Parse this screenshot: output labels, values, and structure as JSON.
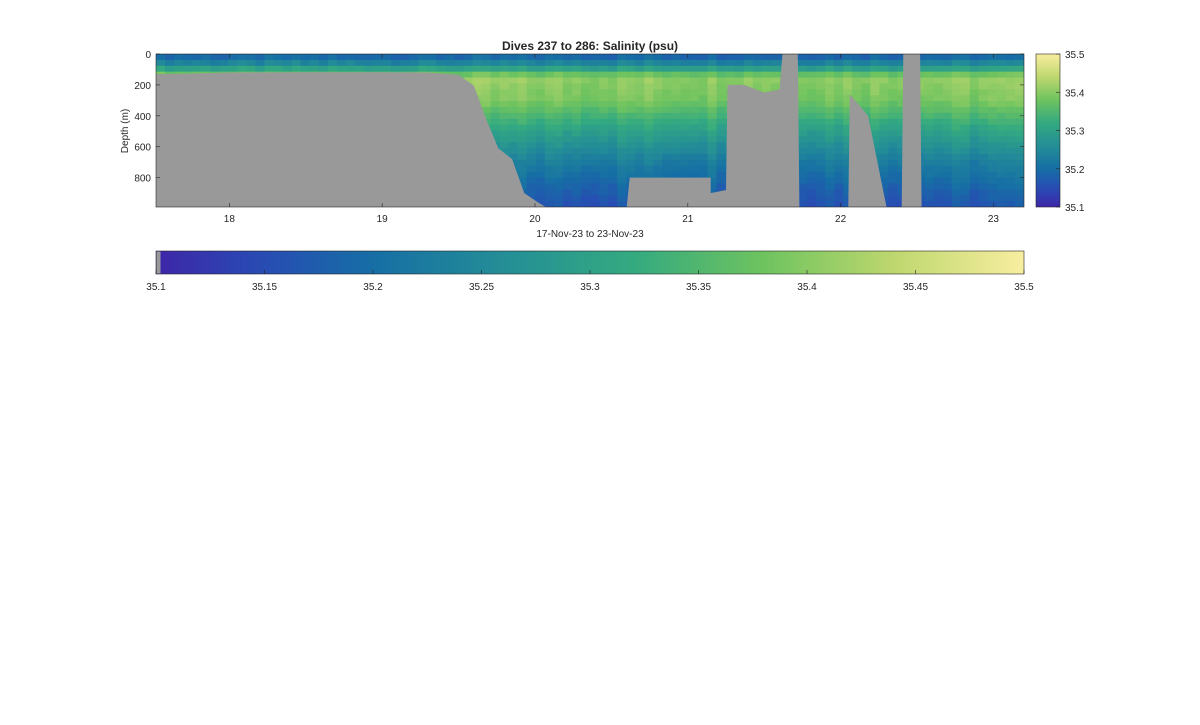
{
  "chart_data": [
    {
      "type": "heatmap",
      "title": "Dives 237 to 286: Salinity (psu)",
      "xlabel": "17-Nov-23 to 23-Nov-23",
      "ylabel": "Depth (m)",
      "x_unit": "day of Nov-2023",
      "xlim": [
        17.52,
        23.2
      ],
      "ylim": [
        0,
        990
      ],
      "y_reversed": true,
      "x_ticks": [
        18,
        19,
        20,
        21,
        22,
        23
      ],
      "y_ticks": [
        0,
        200,
        400,
        600,
        800
      ],
      "grid": false,
      "colormap": "parula",
      "no_data_color": "#999999",
      "color_range": [
        35.1,
        35.5
      ],
      "colorbar_ticks": [
        "35.5",
        "35.4",
        "35.3",
        "35.2",
        "35.1"
      ],
      "bottom_of_data_m": [
        [
          17.52,
          130
        ],
        [
          17.7,
          128
        ],
        [
          18.0,
          120
        ],
        [
          18.5,
          118
        ],
        [
          19.0,
          118
        ],
        [
          19.3,
          120
        ],
        [
          19.5,
          135
        ],
        [
          19.6,
          205
        ],
        [
          19.68,
          420
        ],
        [
          19.76,
          610
        ],
        [
          19.85,
          680
        ],
        [
          19.93,
          900
        ],
        [
          20.02,
          960
        ],
        [
          20.07,
          990
        ],
        [
          20.6,
          990
        ],
        [
          20.62,
          800
        ],
        [
          21.15,
          800
        ],
        [
          21.15,
          900
        ],
        [
          21.25,
          880
        ],
        [
          21.26,
          200
        ],
        [
          21.37,
          200
        ],
        [
          21.5,
          250
        ],
        [
          21.6,
          230
        ],
        [
          21.62,
          0
        ],
        [
          21.72,
          0
        ],
        [
          21.73,
          990
        ],
        [
          22.05,
          990
        ],
        [
          22.06,
          260
        ],
        [
          22.18,
          400
        ],
        [
          22.3,
          990
        ],
        [
          22.4,
          990
        ],
        [
          22.41,
          0
        ],
        [
          22.52,
          0
        ],
        [
          22.53,
          990
        ],
        [
          23.2,
          990
        ]
      ],
      "profile_levels": [
        {
          "depth": 0,
          "value": 35.17
        },
        {
          "depth": 80,
          "value": 35.27
        },
        {
          "depth": 150,
          "value": 35.41
        },
        {
          "depth": 300,
          "value": 35.39
        },
        {
          "depth": 500,
          "value": 35.3
        },
        {
          "depth": 700,
          "value": 35.23
        },
        {
          "depth": 850,
          "value": 35.19
        },
        {
          "depth": 990,
          "value": 35.16
        }
      ]
    },
    {
      "type": "colorbar",
      "orientation": "horizontal",
      "colormap": "parula",
      "range": [
        35.1,
        35.5
      ],
      "ticks": [
        "35.1",
        "35.15",
        "35.2",
        "35.25",
        "35.3",
        "35.35",
        "35.4",
        "35.45",
        "35.5"
      ]
    }
  ]
}
